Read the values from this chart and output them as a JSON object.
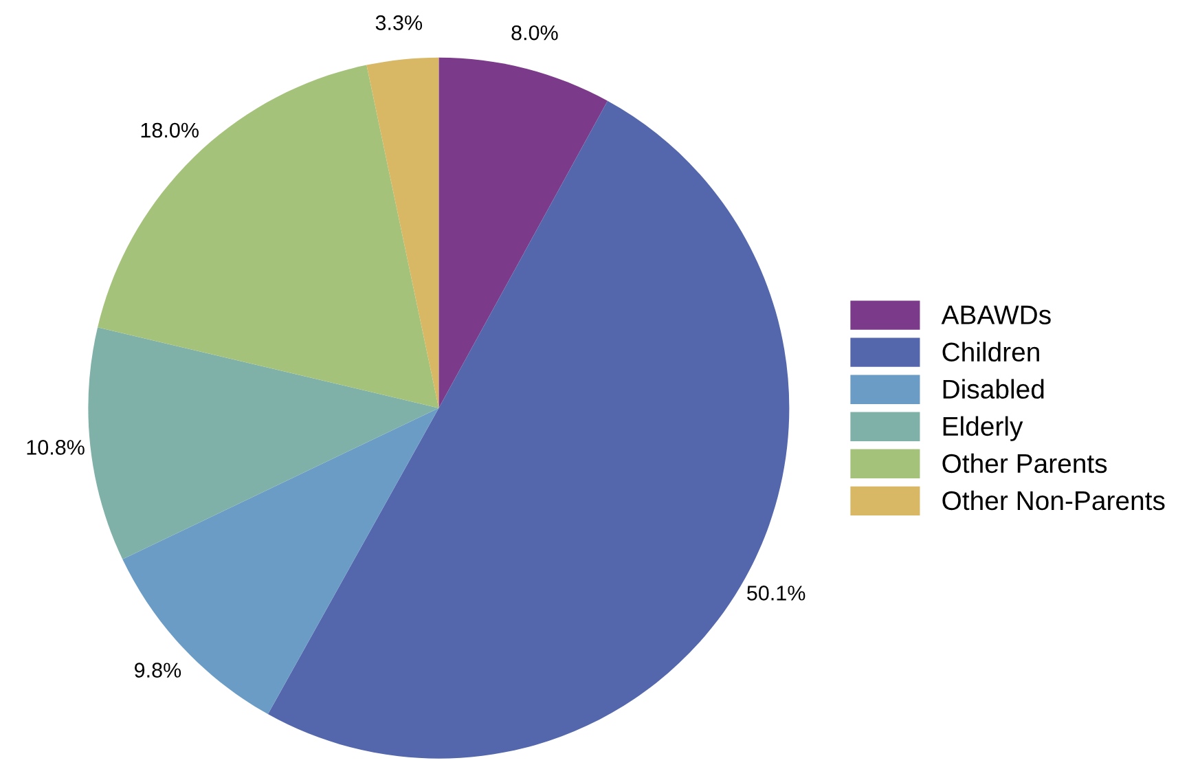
{
  "chart_data": {
    "type": "pie",
    "categories": [
      "ABAWDs",
      "Children",
      "Disabled",
      "Elderly",
      "Other Parents",
      "Other Non-Parents"
    ],
    "values": [
      8.0,
      50.1,
      9.8,
      10.8,
      18.0,
      3.3
    ],
    "colors": [
      "#7b3a8a",
      "#5467ac",
      "#6b9cc6",
      "#7fb1a9",
      "#a5c27a",
      "#d8b865"
    ],
    "value_labels": [
      "8.0%",
      "50.1%",
      "9.8%",
      "10.8%",
      "18.0%",
      "3.3%"
    ],
    "legend": "right"
  }
}
